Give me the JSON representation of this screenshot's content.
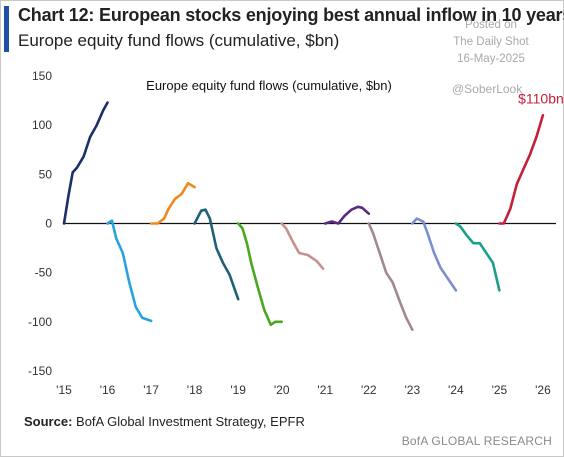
{
  "header": {
    "title": "Chart 12: European stocks enjoying best annual inflow in 10 years",
    "subtitle": "Europe equity fund flows (cumulative, $bn)"
  },
  "watermark": {
    "line1": "Posted on",
    "line2": "The Daily Shot",
    "line3": "16-May-2025",
    "handle": "@SoberLook"
  },
  "footer": {
    "source_label": "Source:",
    "source_text": " BofA Global Investment Strategy, EPFR",
    "brand": "BofA GLOBAL RESEARCH"
  },
  "colors": {
    "accent": "#1f4fa8",
    "zero_line": "#111111"
  },
  "chart_data": {
    "type": "line",
    "title": "Europe equity fund flows (cumulative, $bn)",
    "xlabel": "",
    "ylabel": "",
    "xlim": [
      2015,
      2026.3
    ],
    "ylim": [
      -150,
      150
    ],
    "y_ticks": [
      150,
      100,
      50,
      0,
      -50,
      -100,
      -150
    ],
    "x_ticks": [
      2015,
      2016,
      2017,
      2018,
      2019,
      2020,
      2021,
      2022,
      2023,
      2024,
      2025,
      2026
    ],
    "x_tick_labels": [
      "'15",
      "'16",
      "'17",
      "'18",
      "'19",
      "'20",
      "'21",
      "'22",
      "'23",
      "'24",
      "'25",
      "'26"
    ],
    "grid": false,
    "legend": "none",
    "annotation": {
      "text": "$110bn",
      "color": "#c4203a"
    },
    "series": [
      {
        "color": "#1a2f6b",
        "x": [
          2015.0,
          2015.1,
          2015.2,
          2015.3,
          2015.45,
          2015.6,
          2015.75,
          2015.9,
          2016.0
        ],
        "y": [
          0,
          28,
          52,
          57,
          68,
          88,
          100,
          115,
          123
        ]
      },
      {
        "color": "#2aa3dd",
        "x": [
          2016.0,
          2016.1,
          2016.2,
          2016.35,
          2016.5,
          2016.65,
          2016.8,
          2017.0
        ],
        "y": [
          0,
          3,
          -15,
          -30,
          -60,
          -85,
          -96,
          -99
        ]
      },
      {
        "color": "#ee8a1c",
        "x": [
          2017.0,
          2017.15,
          2017.3,
          2017.4,
          2017.55,
          2017.7,
          2017.85,
          2018.0
        ],
        "y": [
          0,
          0,
          5,
          15,
          25,
          30,
          41,
          37
        ]
      },
      {
        "color": "#1f5f78",
        "x": [
          2018.0,
          2018.15,
          2018.25,
          2018.35,
          2018.5,
          2018.65,
          2018.8,
          2019.0
        ],
        "y": [
          0,
          13,
          14,
          5,
          -25,
          -40,
          -52,
          -77
        ]
      },
      {
        "color": "#4aa81e",
        "x": [
          2019.0,
          2019.1,
          2019.2,
          2019.3,
          2019.45,
          2019.6,
          2019.75,
          2019.85,
          2020.0
        ],
        "y": [
          0,
          -5,
          -20,
          -40,
          -65,
          -88,
          -103,
          -100,
          -100
        ]
      },
      {
        "color": "#c99090",
        "x": [
          2020.0,
          2020.1,
          2020.25,
          2020.4,
          2020.6,
          2020.8,
          2020.95
        ],
        "y": [
          0,
          -5,
          -18,
          -30,
          -32,
          -38,
          -46
        ]
      },
      {
        "color": "#5a2a80",
        "x": [
          2021.0,
          2021.15,
          2021.3,
          2021.45,
          2021.6,
          2021.75,
          2021.85,
          2022.0
        ],
        "y": [
          0,
          2,
          0,
          8,
          14,
          17,
          16,
          10
        ]
      },
      {
        "color": "#a08a8c",
        "x": [
          2022.0,
          2022.1,
          2022.25,
          2022.4,
          2022.55,
          2022.7,
          2022.85,
          2023.0
        ],
        "y": [
          0,
          -10,
          -30,
          -50,
          -60,
          -78,
          -95,
          -108
        ]
      },
      {
        "color": "#7b8fd0",
        "x": [
          2023.0,
          2023.1,
          2023.25,
          2023.35,
          2023.5,
          2023.65,
          2023.8,
          2024.0
        ],
        "y": [
          0,
          5,
          2,
          -10,
          -30,
          -45,
          -55,
          -68
        ]
      },
      {
        "color": "#1aa08a",
        "x": [
          2024.0,
          2024.1,
          2024.25,
          2024.4,
          2024.55,
          2024.7,
          2024.85,
          2025.0
        ],
        "y": [
          0,
          -3,
          -12,
          -20,
          -20,
          -30,
          -40,
          -68
        ]
      },
      {
        "color": "#c4203a",
        "x": [
          2025.0,
          2025.1,
          2025.25,
          2025.4,
          2025.55,
          2025.7,
          2025.85,
          2026.0
        ],
        "y": [
          0,
          0,
          15,
          40,
          55,
          70,
          88,
          110
        ]
      }
    ]
  }
}
